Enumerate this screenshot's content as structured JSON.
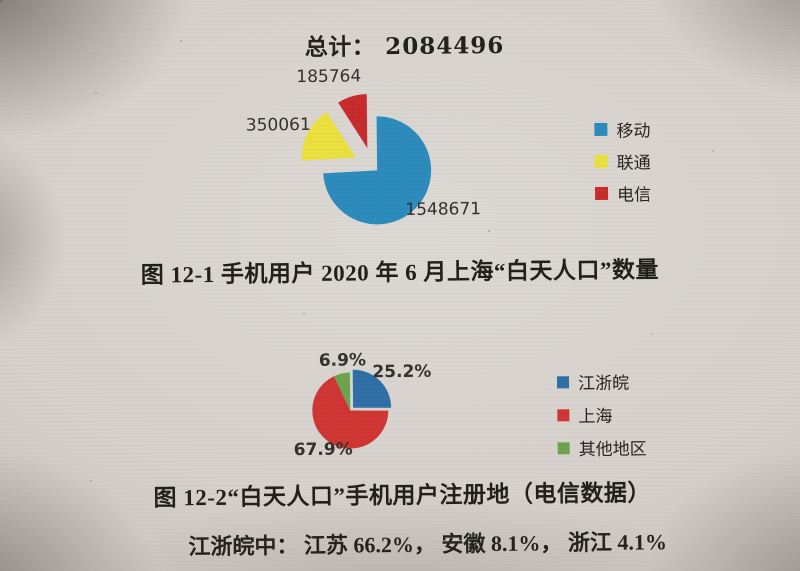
{
  "chart_data": [
    {
      "type": "pie",
      "title": "图 12-1 手机用户 2020 年 6 月上海“白天人口”数量",
      "total_label": "总计：",
      "total_value": "2084496",
      "legend_position": "right",
      "slices": [
        {
          "name": "移动",
          "value": 1548671,
          "display": "1548671",
          "color": "#2b8abb",
          "explode": 6
        },
        {
          "name": "联通",
          "value": 350061,
          "display": "350061",
          "color": "#e9df3d",
          "explode": 19
        },
        {
          "name": "电信",
          "value": 185764,
          "display": "185764",
          "color": "#c62a2c",
          "explode": 19
        }
      ]
    },
    {
      "type": "pie",
      "title": "图 12-2“白天人口”手机用户注册地（电信数据）",
      "legend_position": "right",
      "footnote": "江浙皖中： 江苏 66.2%， 安徽 8.1%， 浙江 4.1%",
      "slices": [
        {
          "name": "江浙皖",
          "value": 25.2,
          "display": "25.2%",
          "color": "#2e6ea5",
          "explode": 4
        },
        {
          "name": "上海",
          "value": 67.9,
          "display": "67.9%",
          "color": "#ce3431",
          "explode": 0
        },
        {
          "name": "其他地区",
          "value": 6.9,
          "display": "6.9%",
          "color": "#6ca24d",
          "explode": 0
        }
      ]
    }
  ]
}
